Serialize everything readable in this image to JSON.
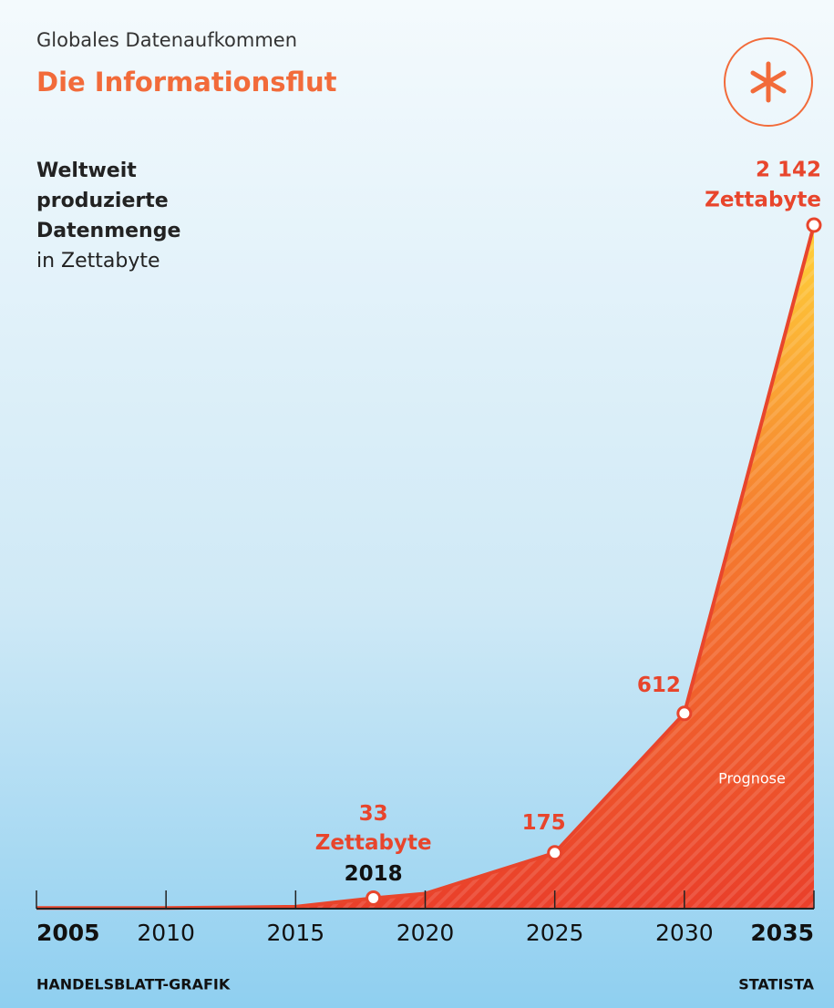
{
  "chart_data": {
    "type": "area",
    "kicker": "Globales Datenaufkommen",
    "title": "Die Informationsflut",
    "subtitle": [
      "Weltweit",
      "produzierte",
      "Datenmenge"
    ],
    "y_label": "in Zettabyte",
    "x": [
      2005,
      2010,
      2015,
      2018,
      2020,
      2025,
      2030,
      2035
    ],
    "values": [
      2,
      2,
      6,
      33,
      47,
      175,
      612,
      2142
    ],
    "value_labels": [
      null,
      null,
      null,
      "33",
      null,
      "175",
      "612",
      "2 142"
    ],
    "unit_label": "Zettabyte",
    "annotation": "Prognose",
    "xlim": [
      2005,
      2035
    ],
    "ylim": [
      0,
      2142
    ],
    "xticks": [
      2005,
      2010,
      2015,
      2020,
      2025,
      2030,
      2035
    ],
    "color": "#e8452c",
    "source_left": "HANDELSBLATT-GRAFIK",
    "source_right": "STATISTA"
  }
}
